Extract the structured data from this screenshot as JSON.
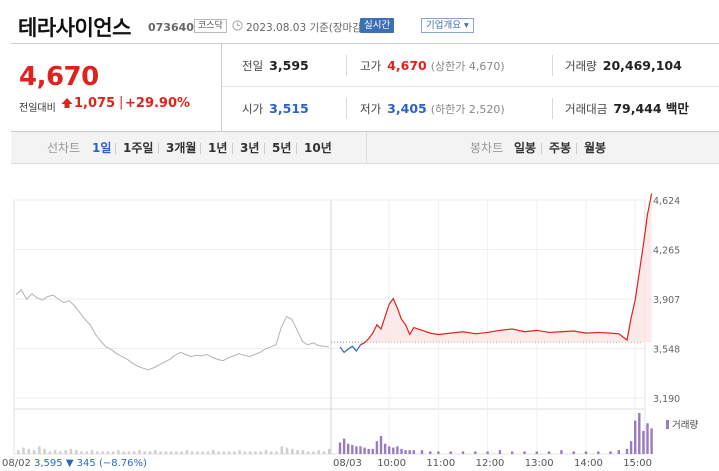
{
  "header": {
    "stock_name": "테라사이언스",
    "stock_code": "073640",
    "market": "코스닥",
    "date_text": "2023.08.03 기준(장마감)",
    "realtime_btn": "실시간",
    "company_btn": "기업개요 ▾"
  },
  "summary": {
    "price": "4,670",
    "change_label": "전일대비",
    "change_amount": "1,075",
    "change_pct": "+29.90%",
    "stats": {
      "prev_close_label": "전일",
      "prev_close": "3,595",
      "high_label": "고가",
      "high": "4,670",
      "upper_limit": "(상한가 4,670)",
      "volume_label": "거래량",
      "volume": "20,469,104",
      "open_label": "시가",
      "open": "3,515",
      "low_label": "저가",
      "low": "3,405",
      "lower_limit": "(하한가 2,520)",
      "value_label": "거래대금",
      "value": "79,444 백만"
    }
  },
  "tabs": {
    "line_chart_label": "선차트",
    "periods": [
      "1일",
      "1주일",
      "3개월",
      "1년",
      "3년",
      "5년",
      "10년"
    ],
    "active_period": "1일",
    "candle_label": "봉차트",
    "candles": [
      "일봉",
      "주봉",
      "월봉"
    ]
  },
  "colors": {
    "up": "#e1221c",
    "down": "#2b64c9",
    "prev_day_line": "#b3b3b3",
    "volume_today": "#9b7bc0",
    "volume_prev": "#cfcfcf"
  },
  "chart_data": {
    "type": "line",
    "ylim": [
      3190,
      4624
    ],
    "y_ticks": [
      "4,624",
      "4,265",
      "3,907",
      "3,548",
      "3,190"
    ],
    "x_ticks": [
      "08/03",
      "10:00",
      "11:00",
      "12:00",
      "13:00",
      "14:00",
      "15:00"
    ],
    "prev_close": 3595,
    "volume_label": "거래량",
    "prev_day_label": "08/02",
    "prev_day_close": "3,595",
    "prev_day_change": "▼ 345",
    "prev_day_pct": "(−8.76%)",
    "prev_day": [
      3940,
      3975,
      3905,
      3945,
      3915,
      3900,
      3925,
      3935,
      3905,
      3880,
      3895,
      3860,
      3810,
      3760,
      3720,
      3650,
      3600,
      3560,
      3540,
      3510,
      3490,
      3470,
      3440,
      3420,
      3405,
      3395,
      3410,
      3430,
      3450,
      3470,
      3500,
      3520,
      3505,
      3490,
      3500,
      3495,
      3505,
      3485,
      3470,
      3460,
      3480,
      3495,
      3510,
      3500,
      3490,
      3505,
      3520,
      3545,
      3560,
      3575,
      3700,
      3780,
      3760,
      3680,
      3600,
      3575,
      3590,
      3570,
      3565,
      3560
    ],
    "today_times": [
      "09:00",
      "09:05",
      "09:10",
      "09:15",
      "09:20",
      "09:25",
      "09:30",
      "09:35",
      "09:40",
      "09:45",
      "09:50",
      "09:55",
      "10:00",
      "10:05",
      "10:10",
      "10:15",
      "10:20",
      "10:25",
      "10:30",
      "10:40",
      "10:50",
      "11:00",
      "11:15",
      "11:30",
      "11:45",
      "12:00",
      "12:15",
      "12:30",
      "12:45",
      "13:00",
      "13:15",
      "13:30",
      "13:45",
      "14:00",
      "14:15",
      "14:30",
      "14:40",
      "14:50",
      "14:55",
      "15:00",
      "15:05",
      "15:10",
      "15:15",
      "15:20"
    ],
    "today": [
      3560,
      3520,
      3545,
      3565,
      3530,
      3575,
      3590,
      3620,
      3660,
      3720,
      3690,
      3780,
      3870,
      3910,
      3840,
      3760,
      3720,
      3650,
      3700,
      3680,
      3660,
      3650,
      3660,
      3670,
      3655,
      3665,
      3680,
      3690,
      3670,
      3680,
      3665,
      3670,
      3675,
      3660,
      3665,
      3660,
      3655,
      3610,
      3770,
      3900,
      4100,
      4300,
      4520,
      4670
    ],
    "volume_today": [
      9,
      12,
      8,
      7,
      6,
      6,
      5,
      4,
      4,
      10,
      14,
      8,
      6,
      5,
      6,
      4,
      3,
      3,
      3,
      3,
      2,
      2,
      2,
      2,
      2,
      2,
      3,
      2,
      2,
      2,
      2,
      3,
      2,
      2,
      2,
      2,
      3,
      4,
      10,
      26,
      32,
      18,
      24,
      20
    ],
    "volume_prev": [
      3,
      5,
      4,
      3,
      6,
      4,
      2,
      3,
      2,
      3,
      4,
      3,
      2,
      2,
      3,
      2,
      2,
      2,
      2,
      3,
      2,
      2,
      2,
      3,
      2,
      2,
      3,
      2,
      2,
      2,
      2,
      2,
      3,
      2,
      2,
      2,
      2,
      3,
      2,
      2,
      2,
      2,
      3,
      2,
      2,
      2,
      2,
      3,
      2,
      2,
      6,
      5,
      4,
      3,
      3,
      2,
      2,
      3,
      2,
      4
    ]
  }
}
